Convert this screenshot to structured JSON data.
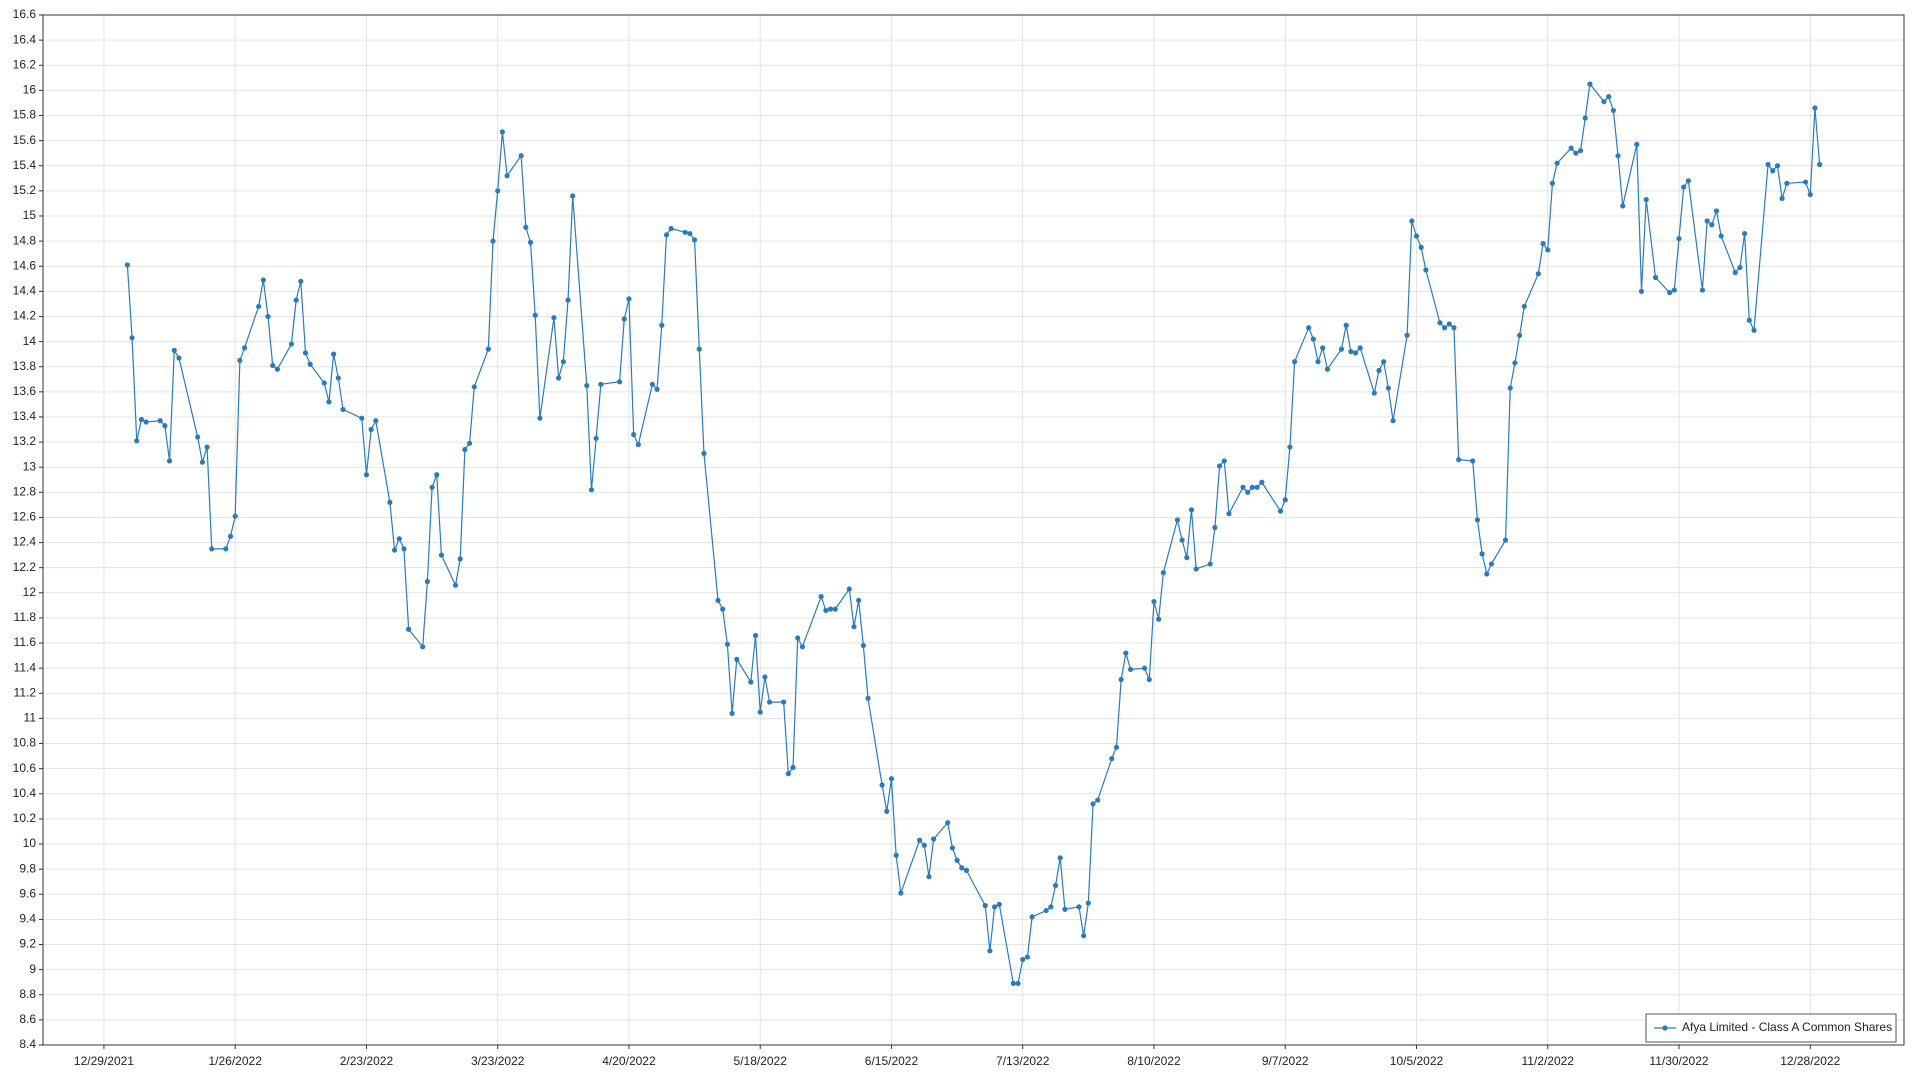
{
  "chart_data": {
    "type": "line",
    "x": [
      "1/3/2022",
      "1/4/2022",
      "1/5/2022",
      "1/6/2022",
      "1/7/2022",
      "1/10/2022",
      "1/11/2022",
      "1/12/2022",
      "1/13/2022",
      "1/14/2022",
      "1/18/2022",
      "1/19/2022",
      "1/20/2022",
      "1/21/2022",
      "1/24/2022",
      "1/25/2022",
      "1/26/2022",
      "1/27/2022",
      "1/28/2022",
      "1/31/2022",
      "2/1/2022",
      "2/2/2022",
      "2/3/2022",
      "2/4/2022",
      "2/7/2022",
      "2/8/2022",
      "2/9/2022",
      "2/10/2022",
      "2/11/2022",
      "2/14/2022",
      "2/15/2022",
      "2/16/2022",
      "2/17/2022",
      "2/18/2022",
      "2/22/2022",
      "2/23/2022",
      "2/24/2022",
      "2/25/2022",
      "2/28/2022",
      "3/1/2022",
      "3/2/2022",
      "3/3/2022",
      "3/4/2022",
      "3/7/2022",
      "3/8/2022",
      "3/9/2022",
      "3/10/2022",
      "3/11/2022",
      "3/14/2022",
      "3/15/2022",
      "3/16/2022",
      "3/17/2022",
      "3/18/2022",
      "3/21/2022",
      "3/22/2022",
      "3/23/2022",
      "3/24/2022",
      "3/25/2022",
      "3/28/2022",
      "3/29/2022",
      "3/30/2022",
      "3/31/2022",
      "4/1/2022",
      "4/4/2022",
      "4/5/2022",
      "4/6/2022",
      "4/7/2022",
      "4/8/2022",
      "4/11/2022",
      "4/12/2022",
      "4/13/2022",
      "4/14/2022",
      "4/18/2022",
      "4/19/2022",
      "4/20/2022",
      "4/21/2022",
      "4/22/2022",
      "4/25/2022",
      "4/26/2022",
      "4/27/2022",
      "4/28/2022",
      "4/29/2022",
      "5/2/2022",
      "5/3/2022",
      "5/4/2022",
      "5/5/2022",
      "5/6/2022",
      "5/9/2022",
      "5/10/2022",
      "5/11/2022",
      "5/12/2022",
      "5/13/2022",
      "5/16/2022",
      "5/17/2022",
      "5/18/2022",
      "5/19/2022",
      "5/20/2022",
      "5/23/2022",
      "5/24/2022",
      "5/25/2022",
      "5/26/2022",
      "5/27/2022",
      "5/31/2022",
      "6/1/2022",
      "6/2/2022",
      "6/3/2022",
      "6/6/2022",
      "6/7/2022",
      "6/8/2022",
      "6/9/2022",
      "6/10/2022",
      "6/13/2022",
      "6/14/2022",
      "6/15/2022",
      "6/16/2022",
      "6/17/2022",
      "6/21/2022",
      "6/22/2022",
      "6/23/2022",
      "6/24/2022",
      "6/27/2022",
      "6/28/2022",
      "6/29/2022",
      "6/30/2022",
      "7/1/2022",
      "7/5/2022",
      "7/6/2022",
      "7/7/2022",
      "7/8/2022",
      "7/11/2022",
      "7/12/2022",
      "7/13/2022",
      "7/14/2022",
      "7/15/2022",
      "7/18/2022",
      "7/19/2022",
      "7/20/2022",
      "7/21/2022",
      "7/22/2022",
      "7/25/2022",
      "7/26/2022",
      "7/27/2022",
      "7/28/2022",
      "7/29/2022",
      "8/1/2022",
      "8/2/2022",
      "8/3/2022",
      "8/4/2022",
      "8/5/2022",
      "8/8/2022",
      "8/9/2022",
      "8/10/2022",
      "8/11/2022",
      "8/12/2022",
      "8/15/2022",
      "8/16/2022",
      "8/17/2022",
      "8/18/2022",
      "8/19/2022",
      "8/22/2022",
      "8/23/2022",
      "8/24/2022",
      "8/25/2022",
      "8/26/2022",
      "8/29/2022",
      "8/30/2022",
      "8/31/2022",
      "9/1/2022",
      "9/2/2022",
      "9/6/2022",
      "9/7/2022",
      "9/8/2022",
      "9/9/2022",
      "9/12/2022",
      "9/13/2022",
      "9/14/2022",
      "9/15/2022",
      "9/16/2022",
      "9/19/2022",
      "9/20/2022",
      "9/21/2022",
      "9/22/2022",
      "9/23/2022",
      "9/26/2022",
      "9/27/2022",
      "9/28/2022",
      "9/29/2022",
      "9/30/2022",
      "10/3/2022",
      "10/4/2022",
      "10/5/2022",
      "10/6/2022",
      "10/7/2022",
      "10/10/2022",
      "10/11/2022",
      "10/12/2022",
      "10/13/2022",
      "10/14/2022",
      "10/17/2022",
      "10/18/2022",
      "10/19/2022",
      "10/20/2022",
      "10/21/2022",
      "10/24/2022",
      "10/25/2022",
      "10/26/2022",
      "10/27/2022",
      "10/28/2022",
      "10/31/2022",
      "11/1/2022",
      "11/2/2022",
      "11/3/2022",
      "11/4/2022",
      "11/7/2022",
      "11/8/2022",
      "11/9/2022",
      "11/10/2022",
      "11/11/2022",
      "11/14/2022",
      "11/15/2022",
      "11/16/2022",
      "11/17/2022",
      "11/18/2022",
      "11/21/2022",
      "11/22/2022",
      "11/23/2022",
      "11/25/2022",
      "11/28/2022",
      "11/29/2022",
      "11/30/2022",
      "12/1/2022",
      "12/2/2022",
      "12/5/2022",
      "12/6/2022",
      "12/7/2022",
      "12/8/2022",
      "12/9/2022",
      "12/12/2022",
      "12/13/2022",
      "12/14/2022",
      "12/15/2022",
      "12/16/2022",
      "12/19/2022",
      "12/20/2022",
      "12/21/2022",
      "12/22/2022",
      "12/23/2022",
      "12/27/2022",
      "12/28/2022",
      "12/29/2022",
      "12/30/2022"
    ],
    "series": [
      {
        "name": "Afya Limited - Class A Common Shares",
        "color": "#2b7bb9",
        "values": [
          14.61,
          14.03,
          13.21,
          13.38,
          13.36,
          13.37,
          13.33,
          13.05,
          13.93,
          13.87,
          13.24,
          13.04,
          13.16,
          12.35,
          12.35,
          12.45,
          12.61,
          13.85,
          13.95,
          14.28,
          14.49,
          14.2,
          13.81,
          13.78,
          13.98,
          14.33,
          14.48,
          13.91,
          13.82,
          13.67,
          13.52,
          13.9,
          13.71,
          13.46,
          13.39,
          12.94,
          13.3,
          13.37,
          12.72,
          12.34,
          12.43,
          12.35,
          11.71,
          11.57,
          12.09,
          12.84,
          12.94,
          12.3,
          12.06,
          12.27,
          13.14,
          13.19,
          13.64,
          13.94,
          14.8,
          15.2,
          15.67,
          15.32,
          15.48,
          14.91,
          14.79,
          14.21,
          13.39,
          14.19,
          13.71,
          13.84,
          14.33,
          15.16,
          13.65,
          12.82,
          13.23,
          13.66,
          13.68,
          14.18,
          14.34,
          13.26,
          13.18,
          13.66,
          13.62,
          14.13,
          14.85,
          14.9,
          14.87,
          14.86,
          14.81,
          13.94,
          13.11,
          11.94,
          11.87,
          11.59,
          11.04,
          11.47,
          11.29,
          11.66,
          11.05,
          11.33,
          11.13,
          11.13,
          10.56,
          10.61,
          11.64,
          11.57,
          11.97,
          11.86,
          11.87,
          11.87,
          12.03,
          11.73,
          11.94,
          11.58,
          11.16,
          10.47,
          10.26,
          10.52,
          9.91,
          9.61,
          10.03,
          9.99,
          9.74,
          10.04,
          10.17,
          9.97,
          9.87,
          9.81,
          9.79,
          9.51,
          9.15,
          9.5,
          9.52,
          8.89,
          8.89,
          9.08,
          9.1,
          9.42,
          9.47,
          9.5,
          9.67,
          9.89,
          9.48,
          9.5,
          9.27,
          9.53,
          10.32,
          10.35,
          10.68,
          10.77,
          11.31,
          11.52,
          11.39,
          11.4,
          11.31,
          11.93,
          11.79,
          12.16,
          12.58,
          12.42,
          12.28,
          12.66,
          12.19,
          12.23,
          12.52,
          13.01,
          13.05,
          12.63,
          12.84,
          12.8,
          12.84,
          12.84,
          12.88,
          12.65,
          12.74,
          13.16,
          13.84,
          14.11,
          14.02,
          13.84,
          13.95,
          13.78,
          13.94,
          14.13,
          13.92,
          13.91,
          13.95,
          13.59,
          13.77,
          13.84,
          13.63,
          13.37,
          14.05,
          14.96,
          14.84,
          14.75,
          14.57,
          14.15,
          14.11,
          14.14,
          14.11,
          13.06,
          13.05,
          12.58,
          12.31,
          12.15,
          12.23,
          12.42,
          13.63,
          13.83,
          14.05,
          14.28,
          14.54,
          14.78,
          14.73,
          15.26,
          15.42,
          15.54,
          15.5,
          15.52,
          15.78,
          16.05,
          15.91,
          15.95,
          15.84,
          15.48,
          15.08,
          15.57,
          14.4,
          15.13,
          14.51,
          14.39,
          14.41,
          14.82,
          15.23,
          15.28,
          14.41,
          14.96,
          14.93,
          15.04,
          14.84,
          14.55,
          14.59,
          14.86,
          14.17,
          14.09,
          15.41,
          15.36,
          15.4,
          15.14,
          15.26,
          15.27,
          15.17,
          15.86,
          15.41
        ]
      }
    ],
    "xlim": [
      "12/16/2021",
      "1/17/2023"
    ],
    "xticks": [
      "12/29/2021",
      "1/26/2022",
      "2/23/2022",
      "3/23/2022",
      "4/20/2022",
      "5/18/2022",
      "6/15/2022",
      "7/13/2022",
      "8/10/2022",
      "9/7/2022",
      "10/5/2022",
      "11/2/2022",
      "11/30/2022",
      "12/28/2022"
    ],
    "ylim": [
      8.4,
      16.6
    ],
    "yticks": [
      8.4,
      8.6,
      8.8,
      9,
      9.2,
      9.4,
      9.6,
      9.8,
      10,
      10.2,
      10.4,
      10.6,
      10.8,
      11,
      11.2,
      11.4,
      11.6,
      11.8,
      12,
      12.2,
      12.4,
      12.6,
      12.8,
      13,
      13.2,
      13.4,
      13.6,
      13.8,
      14,
      14.2,
      14.4,
      14.6,
      14.8,
      15,
      15.2,
      15.4,
      15.6,
      15.8,
      16,
      16.2,
      16.4,
      16.6
    ],
    "grid": true,
    "legend": "lower right"
  }
}
